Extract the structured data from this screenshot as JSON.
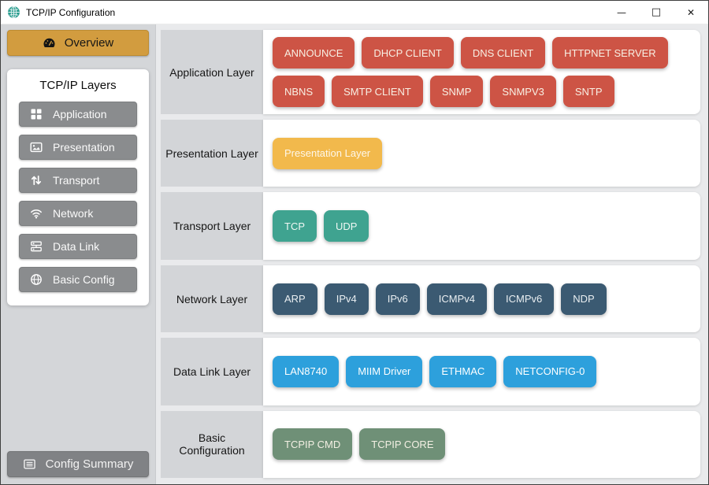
{
  "window": {
    "title": "TCP/IP Configuration",
    "app_icon": "network-globe-icon",
    "controls": {
      "minimize_glyph": "—",
      "maximize_glyph": "□",
      "close_glyph": "✕"
    }
  },
  "colors": {
    "app_icon_teal": "#2a9d8f",
    "overview_gold": "#d29c3f",
    "sidebar_button_gray": "#8a8c8e",
    "config_summary_gray": "#808285",
    "application_red": "#cd5445",
    "presentation_gold": "#f2b94c",
    "transport_teal": "#3fa390",
    "network_slate": "#3b5a72",
    "datalink_blue": "#2da0dc",
    "basic_green": "#6f9077"
  },
  "sidebar": {
    "overview_label": "Overview",
    "overview_icon": "dashboard-icon",
    "layers_title": "TCP/IP Layers",
    "layers": [
      {
        "label": "Application",
        "icon": "grid-icon"
      },
      {
        "label": "Presentation",
        "icon": "image-icon"
      },
      {
        "label": "Transport",
        "icon": "arrows-vertical-icon"
      },
      {
        "label": "Network",
        "icon": "wifi-icon"
      },
      {
        "label": "Data Link",
        "icon": "server-icon"
      },
      {
        "label": "Basic Config",
        "icon": "globe-icon"
      }
    ],
    "config_summary_label": "Config Summary",
    "config_summary_icon": "list-icon"
  },
  "main": {
    "rows": [
      {
        "label": "Application Layer",
        "chip_color": "#cd5445",
        "chip_text_color": "#f8f0e4",
        "chips": [
          "ANNOUNCE",
          "DHCP CLIENT",
          "DNS CLIENT",
          "HTTPNET SERVER",
          "NBNS",
          "SMTP CLIENT",
          "SNMP",
          "SNMPV3",
          "SNTP"
        ]
      },
      {
        "label": "Presentation Layer",
        "chip_color": "#f2b94c",
        "chip_text_color": "#fdf7ea",
        "chips": [
          "Presentation Layer"
        ]
      },
      {
        "label": "Transport Layer",
        "chip_color": "#3fa390",
        "chip_text_color": "#eef7f3",
        "chips": [
          "TCP",
          "UDP"
        ]
      },
      {
        "label": "Network Layer",
        "chip_color": "#3b5a72",
        "chip_text_color": "#e9eef1",
        "chips": [
          "ARP",
          "IPv4",
          "IPv6",
          "ICMPv4",
          "ICMPv6",
          "NDP"
        ]
      },
      {
        "label": "Data Link Layer",
        "chip_color": "#2da0dc",
        "chip_text_color": "#ffffff",
        "chips": [
          "LAN8740",
          "MIIM Driver",
          "ETHMAC",
          "NETCONFIG-0"
        ]
      },
      {
        "label": "Basic Configuration",
        "chip_color": "#6f9077",
        "chip_text_color": "#f3efe3",
        "chips": [
          "TCPIP CMD",
          "TCPIP CORE"
        ]
      }
    ]
  }
}
